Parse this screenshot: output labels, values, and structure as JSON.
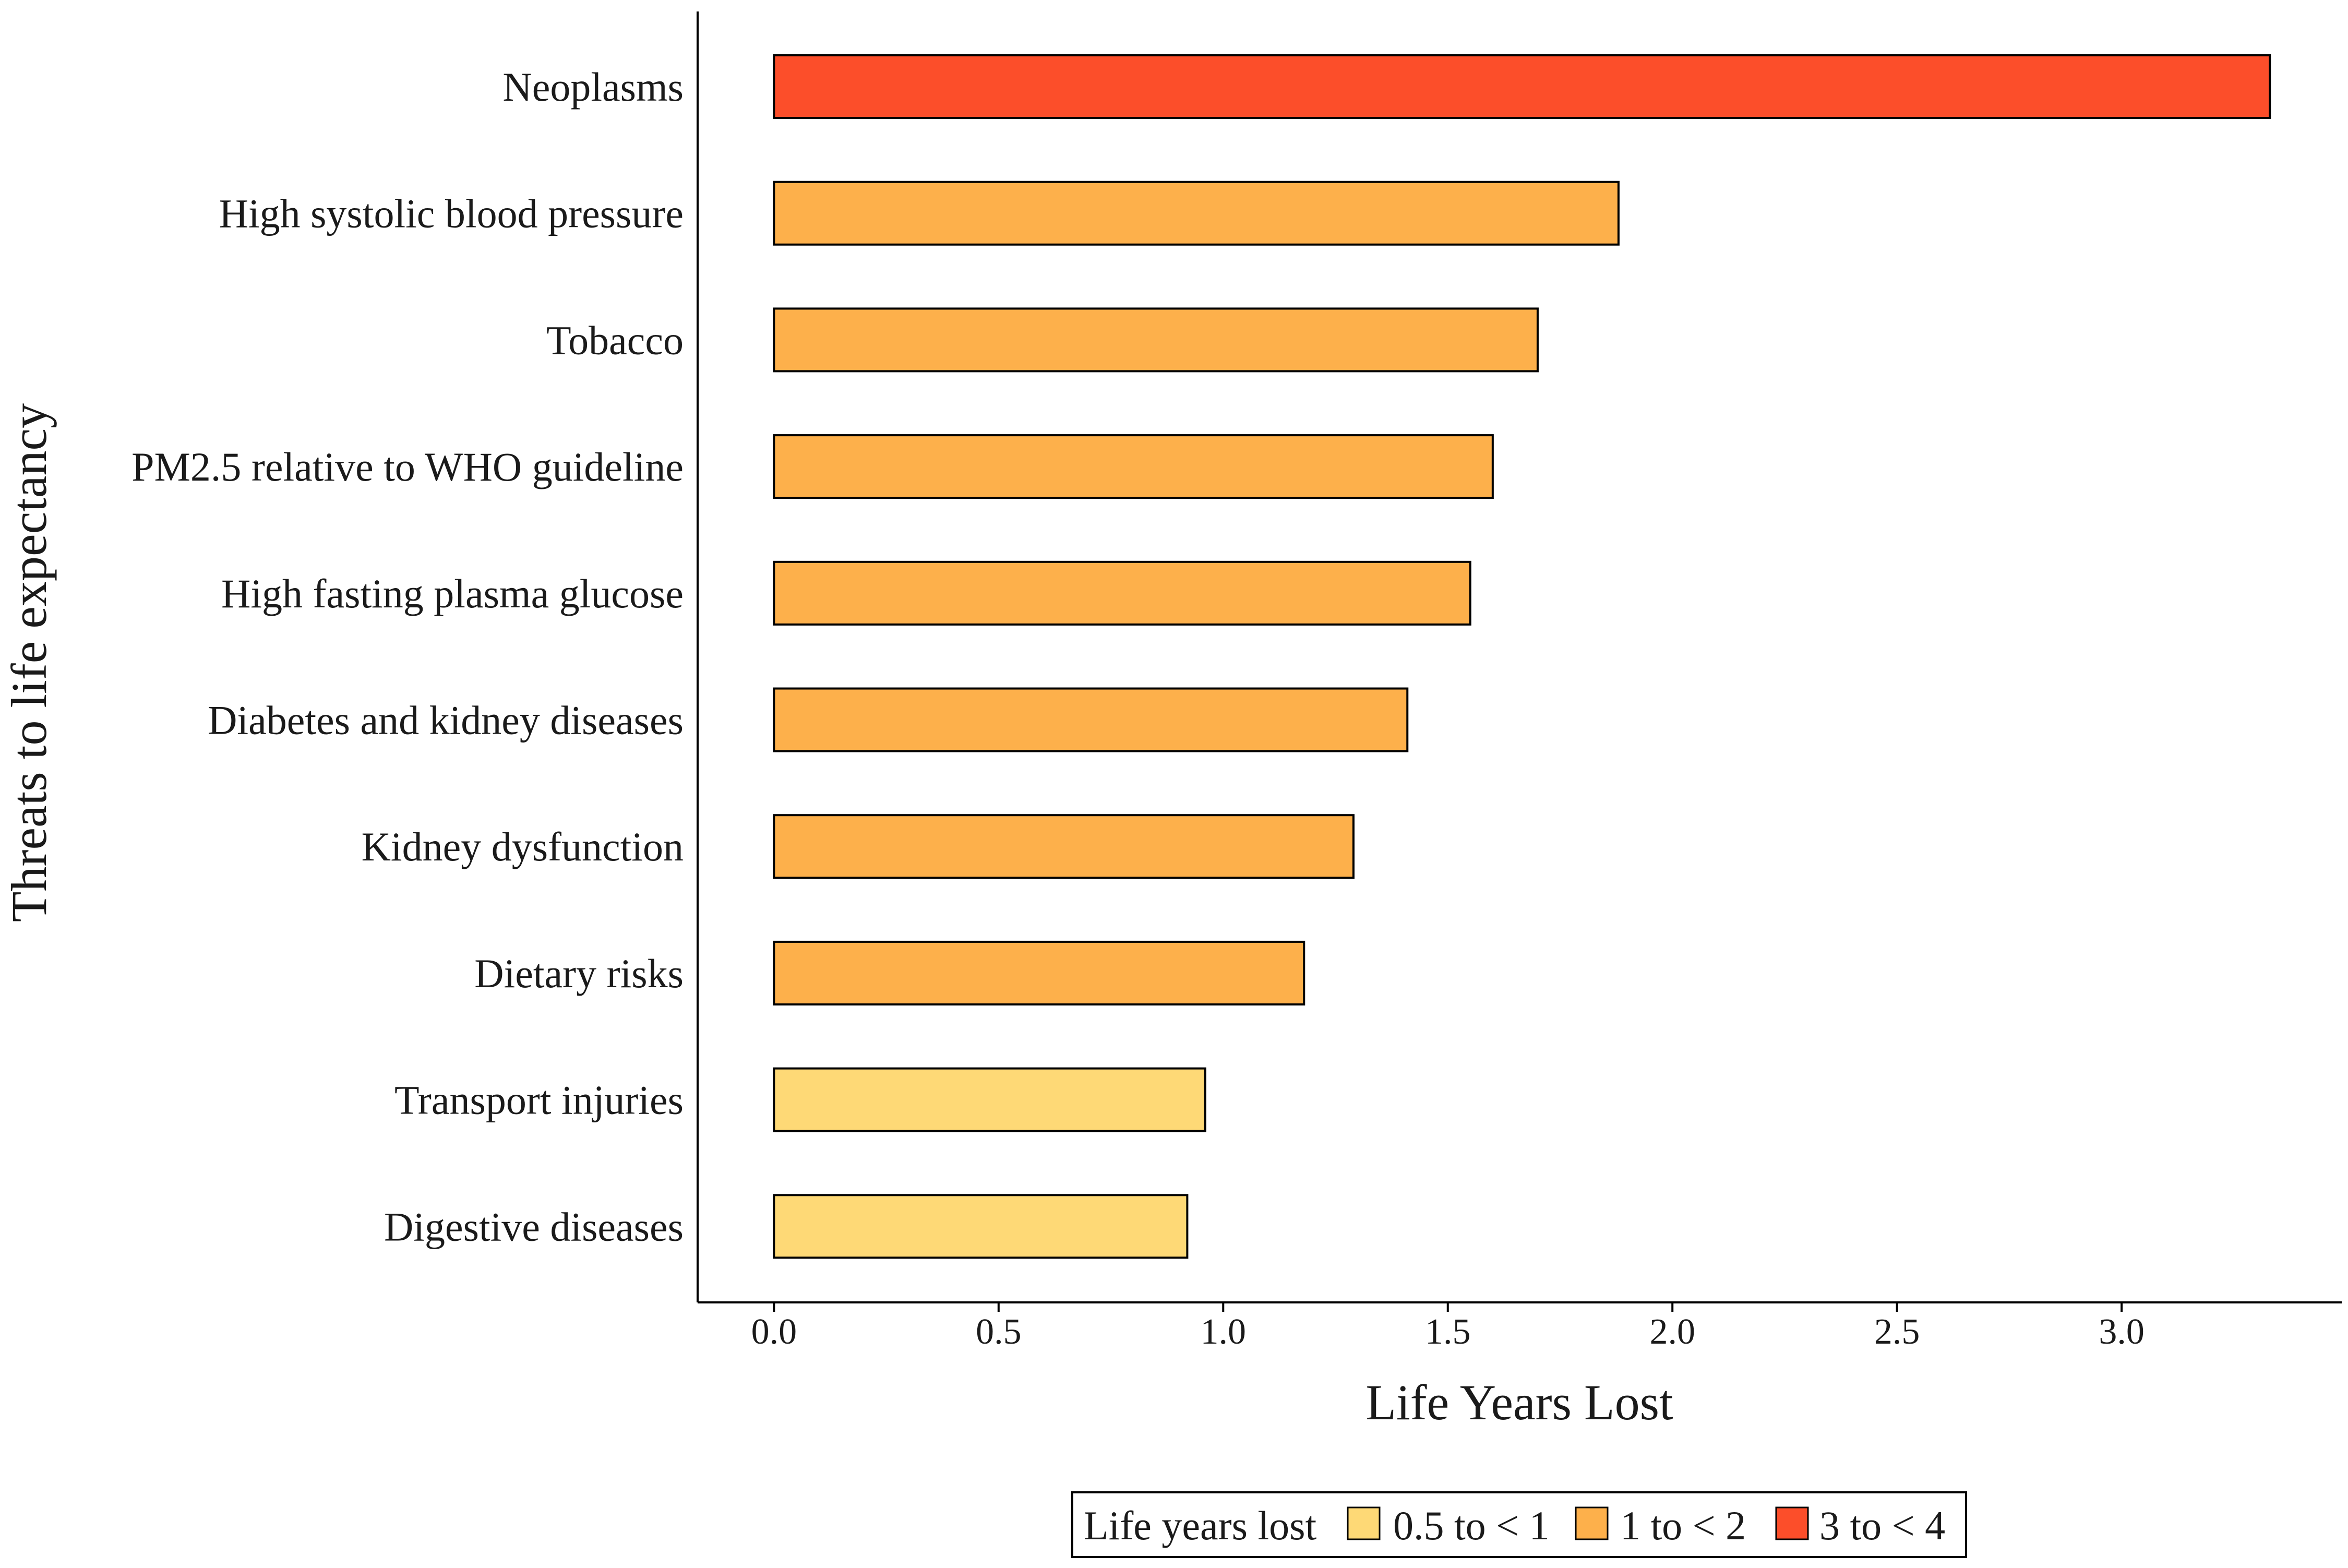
{
  "chart_data": {
    "type": "bar",
    "orientation": "horizontal",
    "title": "",
    "xlabel": "Life Years Lost",
    "ylabel": "Threats to life expectancy",
    "xlim": [
      -0.17,
      3.49
    ],
    "xticks": [
      0.0,
      0.5,
      1.0,
      1.5,
      2.0,
      2.5,
      3.0
    ],
    "xtick_labels": [
      "0.0",
      "0.5",
      "1.0",
      "1.5",
      "2.0",
      "2.5",
      "3.0"
    ],
    "grid": false,
    "categories": [
      "Neoplasms",
      "High systolic blood pressure",
      "Tobacco",
      "PM2.5 relative to WHO guideline",
      "High fasting plasma glucose",
      "Diabetes and kidney diseases",
      "Kidney dysfunction",
      "Dietary risks",
      "Transport injuries",
      "Digestive diseases"
    ],
    "values": [
      3.33,
      1.88,
      1.7,
      1.6,
      1.55,
      1.41,
      1.29,
      1.18,
      0.96,
      0.92
    ],
    "value_groups": [
      "3 to < 4",
      "1 to < 2",
      "1 to < 2",
      "1 to < 2",
      "1 to < 2",
      "1 to < 2",
      "1 to < 2",
      "1 to < 2",
      "0.5 to < 1",
      "0.5 to < 1"
    ],
    "legend": {
      "title": "Life years lost",
      "placement": "bottom",
      "entries": [
        {
          "label": "0.5 to < 1",
          "color": "#FED976"
        },
        {
          "label": "1 to < 2",
          "color": "#FDB04B"
        },
        {
          "label": "3 to < 4",
          "color": "#FC4E2A"
        }
      ]
    }
  }
}
